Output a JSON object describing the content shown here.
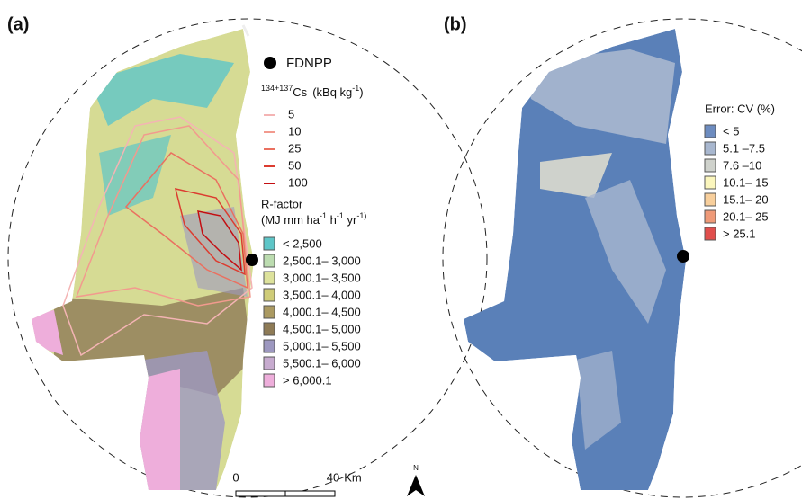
{
  "panel_a": {
    "label": "(a)",
    "site": "FDNPP",
    "cs_title": {
      "isotope": "134+137",
      "element": "Cs",
      "unit": "(kBq kg",
      "unit_exp": "-1",
      "close": ")"
    },
    "contours": [
      {
        "label": "5",
        "color": "#f4b4b4"
      },
      {
        "label": "10",
        "color": "#f29a8e"
      },
      {
        "label": "25",
        "color": "#ea7060"
      },
      {
        "label": "50",
        "color": "#dc3c30"
      },
      {
        "label": "100",
        "color": "#c40e12"
      }
    ],
    "rfactor_title": "R-factor",
    "rfactor_units": [
      "(MJ mm ha",
      "-1",
      " h",
      "-1",
      " yr",
      "-1)"
    ],
    "rfactor_classes": [
      {
        "label": "< 2,500",
        "color": "#5ec6c8"
      },
      {
        "label": "2,500.1– 3,000",
        "color": "#bcdcb0"
      },
      {
        "label": "3,000.1– 3,500",
        "color": "#dde29c"
      },
      {
        "label": "3,500.1– 4,000",
        "color": "#cfcc78"
      },
      {
        "label": "4,000.1– 4,500",
        "color": "#ab9a62"
      },
      {
        "label": "4,500.1– 5,000",
        "color": "#8e7b56"
      },
      {
        "label": "5,000.1– 5,500",
        "color": "#9d98c0"
      },
      {
        "label": "5,500.1– 6,000",
        "color": "#c7abcf"
      },
      {
        "label": "> 6,000.1",
        "color": "#eeaedb"
      }
    ]
  },
  "panel_b": {
    "label": "(b)",
    "cv_title": "Error: CV (%)",
    "cv_classes": [
      {
        "label": "< 5",
        "color": "#6d8cc0"
      },
      {
        "label": "5.1 –7.5",
        "color": "#a8b7cf"
      },
      {
        "label": "7.6 –10",
        "color": "#cfd2cc"
      },
      {
        "label": "10.1– 15",
        "color": "#fbf6bd"
      },
      {
        "label": "15.1– 20",
        "color": "#f8cf9c"
      },
      {
        "label": "20.1– 25",
        "color": "#ef9a78"
      },
      {
        "label": "> 25.1",
        "color": "#e14e4c"
      }
    ]
  },
  "scale_bar": {
    "start": "0",
    "end": "40",
    "unit": "Km"
  },
  "north": "N"
}
